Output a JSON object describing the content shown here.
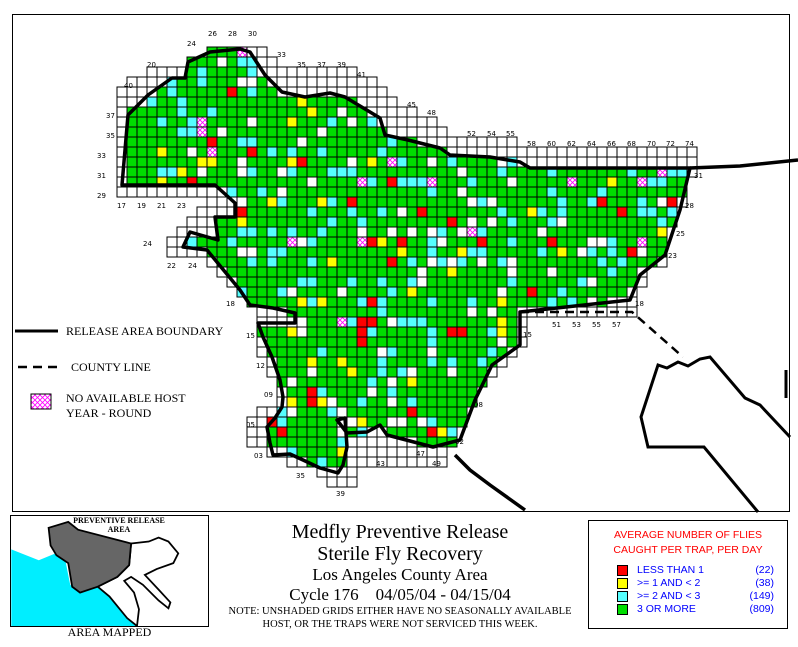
{
  "map": {
    "legend": {
      "boundary_label": "RELEASE AREA BOUNDARY",
      "county_label": "COUNTY LINE",
      "no_host_label_1": "NO AVAILABLE HOST",
      "no_host_label_2": "YEAR - ROUND"
    },
    "grid_labels": [
      "24",
      "26",
      "28",
      "30",
      "33",
      "35",
      "37",
      "39",
      "41",
      "45",
      "48",
      "52",
      "54",
      "55",
      "58",
      "60",
      "62",
      "64",
      "66",
      "68",
      "70",
      "72",
      "74",
      "20",
      "40",
      "37",
      "35",
      "33",
      "31",
      "29",
      "17",
      "19",
      "21",
      "23",
      "24",
      "22",
      "24",
      "18",
      "15",
      "12",
      "09",
      "05",
      "03",
      "35",
      "39",
      "43",
      "47",
      "49",
      "02",
      "08",
      "15",
      "18",
      "51",
      "53",
      "55",
      "57",
      "23",
      "25",
      "28",
      "31"
    ]
  },
  "inset": {
    "label": "PREVENTIVE RELEASE AREA",
    "caption": "AREA MAPPED"
  },
  "title": {
    "line1": "Medfly Preventive Release",
    "line2": "Sterile Fly Recovery",
    "line3": "Los Angeles County Area",
    "line4": "Cycle 176    04/05/04 - 04/15/04",
    "note1": "NOTE: UNSHADED GRIDS EITHER HAVE NO SEASONALLY AVAILABLE",
    "note2": "HOST, OR THE TRAPS WERE NOT SERVICED THIS WEEK."
  },
  "legend": {
    "title1": "AVERAGE NUMBER OF FLIES",
    "title2": "CAUGHT PER TRAP, PER DAY",
    "items": [
      {
        "label": "LESS THAN 1",
        "count": "(22)",
        "color": "#ff0000"
      },
      {
        "label": ">= 1 AND < 2",
        "count": "(38)",
        "color": "#ffff00"
      },
      {
        "label": ">= 2 AND < 3",
        "count": "(149)",
        "color": "#55ffff"
      },
      {
        "label": "3 OR MORE",
        "count": "(809)",
        "color": "#00dd00"
      }
    ],
    "no_host_color": "#ff00ff"
  }
}
